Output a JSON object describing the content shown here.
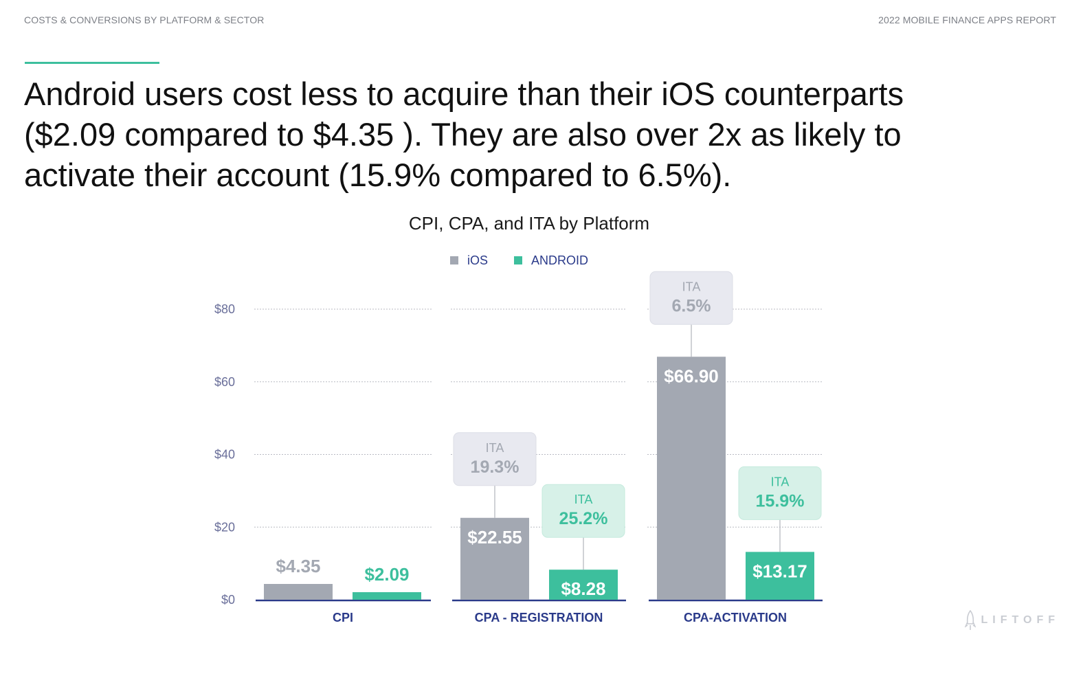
{
  "header": {
    "left": "COSTS & CONVERSIONS BY PLATFORM & SECTOR",
    "right": "2022 MOBILE FINANCE APPS REPORT"
  },
  "headline": "Android users cost less to acquire than their iOS counterparts ($2.09 compared to $4.35 ). They are also over 2x as likely to activate their account (15.9% compared to 6.5%).",
  "logo": {
    "text": "LIFTOFF",
    "icon": "rocket-icon"
  },
  "colors": {
    "ios": "#a3a8b2",
    "android": "#3dbf9d",
    "axis": "#2a3a8a",
    "tick": "#6a6f9a",
    "ios_box": "#e8e9f0",
    "android_box": "#d7f1e8"
  },
  "chart_data": {
    "type": "bar",
    "title": "CPI, CPA, and ITA by Platform",
    "legend": [
      {
        "name": "iOS",
        "color": "#a3a8b2"
      },
      {
        "name": "ANDROID",
        "color": "#3dbf9d"
      }
    ],
    "ylim": [
      0,
      80
    ],
    "yticks": [
      0,
      20,
      40,
      60,
      80
    ],
    "ytick_labels": [
      "$0",
      "$20",
      "$40",
      "$60",
      "$80"
    ],
    "categories": [
      "CPI",
      "CPA - REGISTRATION",
      "CPA-ACTIVATION"
    ],
    "series": [
      {
        "name": "iOS",
        "values": [
          4.35,
          22.55,
          66.9
        ],
        "value_labels": [
          "$4.35",
          "$22.55",
          "$66.90"
        ],
        "ita": [
          null,
          "19.3%",
          "6.5%"
        ]
      },
      {
        "name": "ANDROID",
        "values": [
          2.09,
          8.28,
          13.17
        ],
        "value_labels": [
          "$2.09",
          "$8.28",
          "$13.17"
        ],
        "ita": [
          null,
          "25.2%",
          "15.9%"
        ]
      }
    ],
    "ita_label": "ITA"
  }
}
